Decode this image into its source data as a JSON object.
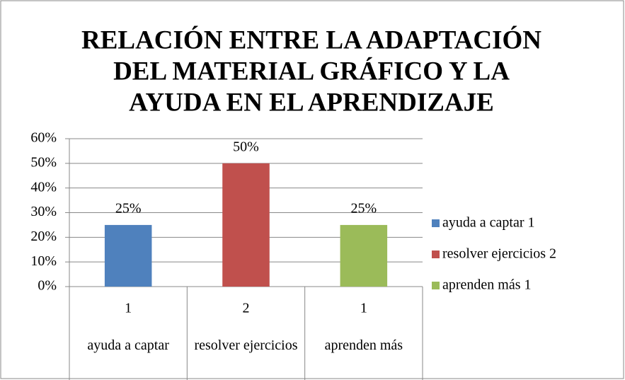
{
  "chart_data": {
    "type": "bar",
    "title": [
      "RELACIÓN ENTRE LA ADAPTACIÓN",
      "DEL MATERIAL GRÁFICO Y LA",
      "AYUDA EN EL APRENDIZAJE"
    ],
    "categories": [
      "1",
      "2",
      "1"
    ],
    "category_groups": [
      "ayuda a captar",
      "resolver ejercicios",
      "aprenden más"
    ],
    "series": [
      {
        "name": "ayuda a captar 1",
        "color": "#4f81bd",
        "values": [
          25,
          null,
          null
        ],
        "value_labels": [
          "25%",
          null,
          null
        ]
      },
      {
        "name": "resolver ejercicios 2",
        "color": "#c0504d",
        "values": [
          null,
          50,
          null
        ],
        "value_labels": [
          null,
          "50%",
          null
        ]
      },
      {
        "name": "aprenden más 1",
        "color": "#9bbb59",
        "values": [
          null,
          null,
          25
        ],
        "value_labels": [
          null,
          null,
          "25%"
        ]
      }
    ],
    "ylim": [
      0,
      60
    ],
    "yticks": [
      {
        "value": 0,
        "label": "0%"
      },
      {
        "value": 10,
        "label": "10%"
      },
      {
        "value": 20,
        "label": "20%"
      },
      {
        "value": 30,
        "label": "30%"
      },
      {
        "value": 40,
        "label": "40%"
      },
      {
        "value": 50,
        "label": "50%"
      },
      {
        "value": 60,
        "label": "60%"
      }
    ],
    "grid": true,
    "legend": "right"
  }
}
